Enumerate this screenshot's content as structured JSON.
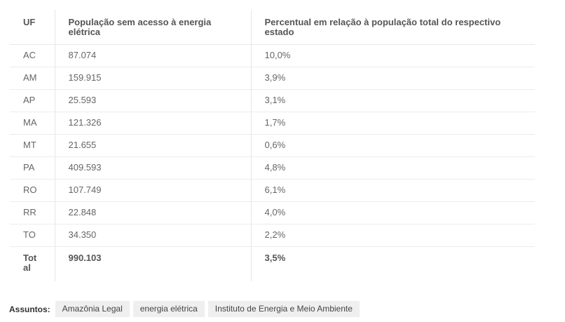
{
  "table": {
    "headers": {
      "uf": "UF",
      "population": "População sem acesso à energia elétrica",
      "percent": "Percentual em relação à população total do respectivo estado"
    },
    "rows": [
      {
        "uf": "AC",
        "population": "87.074",
        "percent": "10,0%"
      },
      {
        "uf": "AM",
        "population": "159.915",
        "percent": "3,9%"
      },
      {
        "uf": "AP",
        "population": "25.593",
        "percent": "3,1%"
      },
      {
        "uf": "MA",
        "population": "121.326",
        "percent": "1,7%"
      },
      {
        "uf": "MT",
        "population": "21.655",
        "percent": "0,6%"
      },
      {
        "uf": "PA",
        "population": "409.593",
        "percent": "4,8%"
      },
      {
        "uf": "RO",
        "population": "107.749",
        "percent": "6,1%"
      },
      {
        "uf": "RR",
        "population": "22.848",
        "percent": "4,0%"
      },
      {
        "uf": "TO",
        "population": "34.350",
        "percent": "2,2%"
      }
    ],
    "total": {
      "uf": "Total",
      "population": "990.103",
      "percent": "3,5%"
    }
  },
  "subjects": {
    "label": "Assuntos:",
    "tags": [
      "Amazônia Legal",
      "energia elétrica",
      "Instituto de Energia e Meio Ambiente"
    ]
  }
}
